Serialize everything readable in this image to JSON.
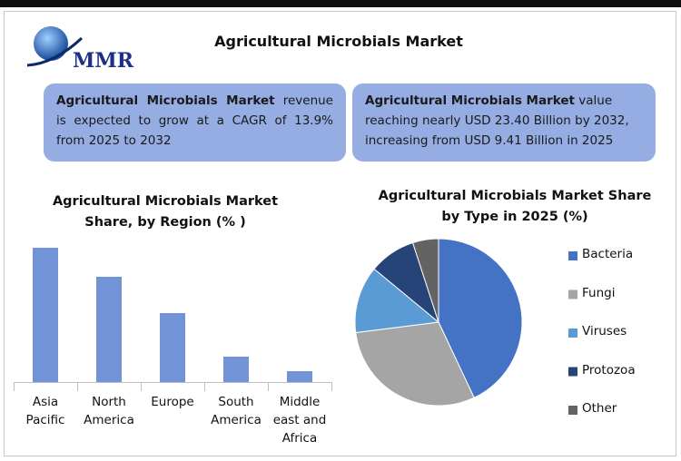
{
  "logo": "MMR",
  "title": "Agricultural Microbials Market",
  "boxes": [
    {
      "bold": "Agricultural Microbials Market",
      "text": "revenue is expected to grow at a CAGR of 13.9% from 2025 to 2032"
    },
    {
      "bold": "Agricultural Microbials Market",
      "text": "value reaching nearly USD 23.40 Billion by 2032, increasing from USD 9.41 Billion in 2025"
    }
  ],
  "chart_data": [
    {
      "type": "bar",
      "title": "Agricultural Microbials Market\nShare, by Region (% )",
      "categories": [
        "Asia Pacific",
        "North America",
        "Europe",
        "South America",
        "Middle east and Africa"
      ],
      "values": [
        37,
        29,
        19,
        7,
        3
      ],
      "color": "#7293d6",
      "ylim": [
        0,
        40
      ]
    },
    {
      "type": "pie",
      "title": "Agricultural Microbials Market Share\nby Type in 2025 (%)",
      "categories": [
        "Bacteria",
        "Fungi",
        "Viruses",
        "Protozoa",
        "Other"
      ],
      "values": [
        43,
        30,
        13,
        9,
        5
      ],
      "colors": [
        "#4472c4",
        "#a5a5a5",
        "#5b9bd5",
        "#264478",
        "#636363"
      ]
    }
  ]
}
